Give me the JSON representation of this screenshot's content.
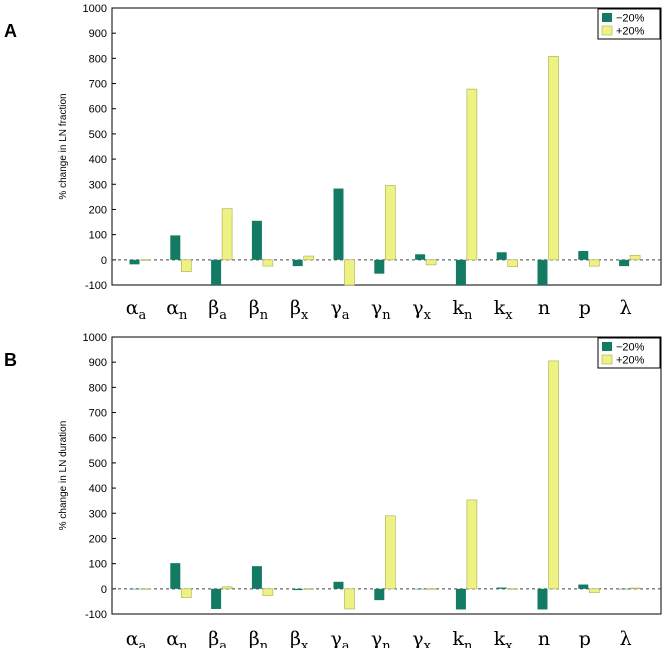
{
  "colors": {
    "minus": "#137a64",
    "plus": "#eef283",
    "plus_stroke": "#a9ad52"
  },
  "chart_data": [
    {
      "panel": "A",
      "type": "bar",
      "ylabel": "% change in LN fraction",
      "ylim": [
        -100,
        1000
      ],
      "yticks": [
        -100,
        0,
        100,
        200,
        300,
        400,
        500,
        600,
        700,
        800,
        900,
        1000
      ],
      "categories": [
        {
          "main": "α",
          "sub": "a"
        },
        {
          "main": "α",
          "sub": "n"
        },
        {
          "main": "β",
          "sub": "a"
        },
        {
          "main": "β",
          "sub": "n"
        },
        {
          "main": "β",
          "sub": "x"
        },
        {
          "main": "γ",
          "sub": "a"
        },
        {
          "main": "γ",
          "sub": "n"
        },
        {
          "main": "γ",
          "sub": "x"
        },
        {
          "main": "k",
          "sub": "n"
        },
        {
          "main": "k",
          "sub": "x"
        },
        {
          "main": "n",
          "sub": ""
        },
        {
          "main": "p",
          "sub": ""
        },
        {
          "main": "λ",
          "sub": ""
        }
      ],
      "series": [
        {
          "name": "−20%",
          "values": [
            -18,
            97,
            -100,
            155,
            -25,
            283,
            -55,
            22,
            -100,
            30,
            -100,
            35,
            -25
          ]
        },
        {
          "name": "+20%",
          "values": [
            0,
            -47,
            203,
            -25,
            15,
            -100,
            295,
            -20,
            678,
            -27,
            808,
            -25,
            18
          ]
        }
      ],
      "legend": "top-right"
    },
    {
      "panel": "B",
      "type": "bar",
      "ylabel": "% change in LN duration",
      "ylim": [
        -100,
        1000
      ],
      "yticks": [
        -100,
        0,
        100,
        200,
        300,
        400,
        500,
        600,
        700,
        800,
        900,
        1000
      ],
      "categories": [
        {
          "main": "α",
          "sub": "a"
        },
        {
          "main": "α",
          "sub": "n"
        },
        {
          "main": "β",
          "sub": "a"
        },
        {
          "main": "β",
          "sub": "n"
        },
        {
          "main": "β",
          "sub": "x"
        },
        {
          "main": "γ",
          "sub": "a"
        },
        {
          "main": "γ",
          "sub": "n"
        },
        {
          "main": "γ",
          "sub": "x"
        },
        {
          "main": "k",
          "sub": "n"
        },
        {
          "main": "k",
          "sub": "x"
        },
        {
          "main": "n",
          "sub": ""
        },
        {
          "main": "p",
          "sub": ""
        },
        {
          "main": "λ",
          "sub": ""
        }
      ],
      "series": [
        {
          "name": "−20%",
          "values": [
            -2,
            102,
            -80,
            90,
            -5,
            28,
            -45,
            0,
            -82,
            5,
            -82,
            17,
            0
          ]
        },
        {
          "name": "+20%",
          "values": [
            -2,
            -35,
            8,
            -27,
            -2,
            -80,
            290,
            0,
            353,
            0,
            905,
            -15,
            3
          ]
        }
      ],
      "legend": "top-right"
    }
  ]
}
